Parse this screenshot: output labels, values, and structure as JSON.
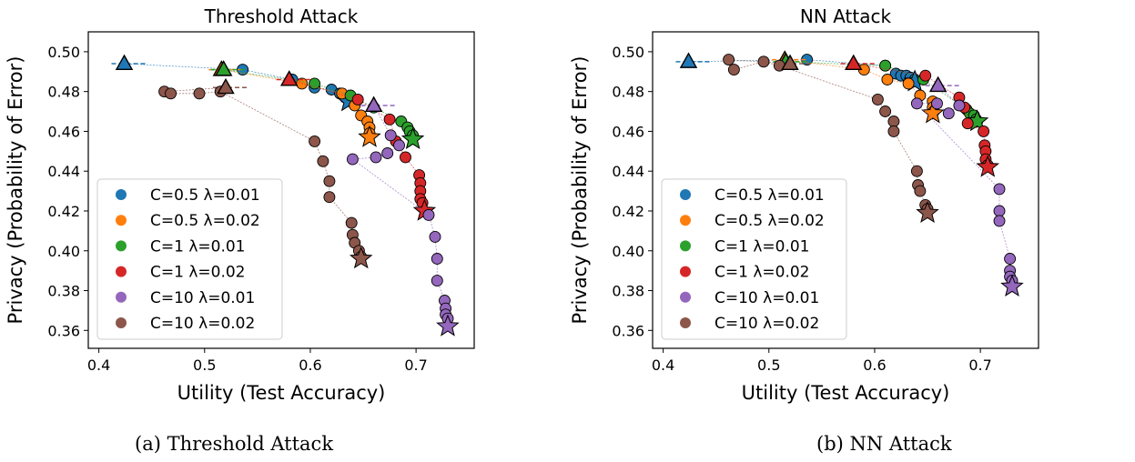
{
  "chart_data": [
    {
      "type": "scatter",
      "title": "Threshold Attack",
      "xlabel": "Utility (Test Accuracy)",
      "ylabel": "Privacy (Probability of Error)",
      "xlim": [
        0.39,
        0.755
      ],
      "ylim": [
        0.351,
        0.51
      ],
      "xticks": [
        0.4,
        0.5,
        0.6,
        0.7
      ],
      "xtick_labels": [
        "0.4",
        "0.5",
        "0.6",
        "0.7"
      ],
      "yticks": [
        0.36,
        0.38,
        0.4,
        0.42,
        0.44,
        0.46,
        0.48,
        0.5
      ],
      "ytick_labels": [
        "0.36",
        "0.38",
        "0.40",
        "0.42",
        "0.44",
        "0.46",
        "0.48",
        "0.50"
      ],
      "legend_position": "lower-left",
      "series": [
        {
          "name": "C=0.5 λ=0.01",
          "color": "#1f77b4",
          "triangle": [
            0.424,
            0.494
          ],
          "star": [
            0.636,
            0.475
          ],
          "points": [
            [
              0.536,
              0.491
            ],
            [
              0.583,
              0.486
            ],
            [
              0.604,
              0.482
            ],
            [
              0.62,
              0.481
            ],
            [
              0.628,
              0.479
            ],
            [
              0.633,
              0.477
            ],
            [
              0.636,
              0.476
            ]
          ]
        },
        {
          "name": "C=0.5 λ=0.02",
          "color": "#ff7f0e",
          "triangle": [
            0.516,
            0.491
          ],
          "star": [
            0.656,
            0.457
          ],
          "points": [
            [
              0.592,
              0.484
            ],
            [
              0.63,
              0.479
            ],
            [
              0.642,
              0.473
            ],
            [
              0.648,
              0.468
            ],
            [
              0.654,
              0.465
            ],
            [
              0.656,
              0.462
            ],
            [
              0.656,
              0.459
            ]
          ]
        },
        {
          "name": "C=1 λ=0.01",
          "color": "#2ca02c",
          "triangle": [
            0.518,
            0.491
          ],
          "star": [
            0.697,
            0.456
          ],
          "points": [
            [
              0.604,
              0.484
            ],
            [
              0.638,
              0.478
            ],
            [
              0.66,
              0.472
            ],
            [
              0.686,
              0.465
            ],
            [
              0.692,
              0.462
            ],
            [
              0.694,
              0.46
            ],
            [
              0.697,
              0.458
            ]
          ]
        },
        {
          "name": "C=1 λ=0.02",
          "color": "#d62728",
          "triangle": [
            0.58,
            0.486
          ],
          "star": [
            0.708,
            0.42
          ],
          "points": [
            [
              0.645,
              0.476
            ],
            [
              0.675,
              0.466
            ],
            [
              0.681,
              0.455
            ],
            [
              0.69,
              0.447
            ],
            [
              0.703,
              0.438
            ],
            [
              0.704,
              0.434
            ],
            [
              0.704,
              0.43
            ],
            [
              0.704,
              0.426
            ],
            [
              0.706,
              0.424
            ]
          ]
        },
        {
          "name": "C=10 λ=0.01",
          "color": "#9467bd",
          "triangle": [
            0.66,
            0.473
          ],
          "star": [
            0.73,
            0.362
          ],
          "points": [
            [
              0.676,
              0.458
            ],
            [
              0.684,
              0.453
            ],
            [
              0.673,
              0.449
            ],
            [
              0.662,
              0.447
            ],
            [
              0.64,
              0.446
            ],
            [
              0.712,
              0.418
            ],
            [
              0.718,
              0.407
            ],
            [
              0.72,
              0.396
            ],
            [
              0.72,
              0.385
            ],
            [
              0.727,
              0.375
            ],
            [
              0.728,
              0.371
            ],
            [
              0.728,
              0.368
            ],
            [
              0.73,
              0.366
            ]
          ]
        },
        {
          "name": "C=10 λ=0.02",
          "color": "#8c564b",
          "triangle": [
            0.52,
            0.482
          ],
          "star": [
            0.648,
            0.396
          ],
          "points": [
            [
              0.462,
              0.48
            ],
            [
              0.468,
              0.479
            ],
            [
              0.495,
              0.479
            ],
            [
              0.515,
              0.48
            ],
            [
              0.604,
              0.455
            ],
            [
              0.612,
              0.445
            ],
            [
              0.618,
              0.435
            ],
            [
              0.618,
              0.427
            ],
            [
              0.639,
              0.414
            ],
            [
              0.64,
              0.408
            ],
            [
              0.642,
              0.404
            ],
            [
              0.646,
              0.4
            ],
            [
              0.648,
              0.397
            ]
          ]
        }
      ]
    },
    {
      "type": "scatter",
      "title": "NN Attack",
      "xlabel": "Utility (Test Accuracy)",
      "ylabel": "Privacy (Probability of Error)",
      "xlim": [
        0.39,
        0.755
      ],
      "ylim": [
        0.351,
        0.51
      ],
      "xticks": [
        0.4,
        0.5,
        0.6,
        0.7
      ],
      "xtick_labels": [
        "0.4",
        "0.5",
        "0.6",
        "0.7"
      ],
      "yticks": [
        0.36,
        0.38,
        0.4,
        0.42,
        0.44,
        0.46,
        0.48,
        0.5
      ],
      "ytick_labels": [
        "0.36",
        "0.38",
        "0.40",
        "0.42",
        "0.44",
        "0.46",
        "0.48",
        "0.50"
      ],
      "legend_position": "lower-left",
      "series": [
        {
          "name": "C=0.5 λ=0.01",
          "color": "#1f77b4",
          "triangle": [
            0.424,
            0.495
          ],
          "star": [
            0.638,
            0.485
          ],
          "points": [
            [
              0.536,
              0.496
            ],
            [
              0.61,
              0.493
            ],
            [
              0.62,
              0.489
            ],
            [
              0.625,
              0.488
            ],
            [
              0.63,
              0.488
            ],
            [
              0.634,
              0.487
            ],
            [
              0.638,
              0.486
            ]
          ]
        },
        {
          "name": "C=0.5 λ=0.02",
          "color": "#ff7f0e",
          "triangle": [
            0.515,
            0.496
          ],
          "star": [
            0.655,
            0.469
          ],
          "points": [
            [
              0.59,
              0.491
            ],
            [
              0.612,
              0.486
            ],
            [
              0.632,
              0.484
            ],
            [
              0.643,
              0.478
            ],
            [
              0.655,
              0.475
            ],
            [
              0.655,
              0.472
            ],
            [
              0.656,
              0.47
            ]
          ]
        },
        {
          "name": "C=1 λ=0.01",
          "color": "#2ca02c",
          "triangle": [
            0.516,
            0.495
          ],
          "star": [
            0.697,
            0.465
          ],
          "points": [
            [
              0.61,
              0.493
            ],
            [
              0.646,
              0.486
            ],
            [
              0.687,
              0.471
            ],
            [
              0.69,
              0.469
            ],
            [
              0.694,
              0.468
            ],
            [
              0.696,
              0.466
            ],
            [
              0.697,
              0.465
            ]
          ]
        },
        {
          "name": "C=1 λ=0.02",
          "color": "#d62728",
          "triangle": [
            0.58,
            0.494
          ],
          "star": [
            0.707,
            0.442
          ],
          "points": [
            [
              0.648,
              0.488
            ],
            [
              0.68,
              0.477
            ],
            [
              0.685,
              0.472
            ],
            [
              0.688,
              0.464
            ],
            [
              0.703,
              0.46
            ],
            [
              0.704,
              0.453
            ],
            [
              0.705,
              0.45
            ],
            [
              0.705,
              0.446
            ],
            [
              0.707,
              0.443
            ]
          ]
        },
        {
          "name": "C=10 λ=0.01",
          "color": "#9467bd",
          "triangle": [
            0.66,
            0.483
          ],
          "star": [
            0.73,
            0.382
          ],
          "points": [
            [
              0.68,
              0.473
            ],
            [
              0.67,
              0.469
            ],
            [
              0.659,
              0.474
            ],
            [
              0.64,
              0.474
            ],
            [
              0.718,
              0.431
            ],
            [
              0.718,
              0.42
            ],
            [
              0.718,
              0.415
            ],
            [
              0.728,
              0.396
            ],
            [
              0.728,
              0.39
            ],
            [
              0.728,
              0.387
            ],
            [
              0.73,
              0.385
            ]
          ]
        },
        {
          "name": "C=10 λ=0.02",
          "color": "#8c564b",
          "triangle": [
            0.52,
            0.494
          ],
          "star": [
            0.65,
            0.419
          ],
          "points": [
            [
              0.462,
              0.496
            ],
            [
              0.467,
              0.491
            ],
            [
              0.495,
              0.495
            ],
            [
              0.51,
              0.493
            ],
            [
              0.603,
              0.476
            ],
            [
              0.61,
              0.47
            ],
            [
              0.618,
              0.465
            ],
            [
              0.618,
              0.46
            ],
            [
              0.64,
              0.44
            ],
            [
              0.641,
              0.433
            ],
            [
              0.643,
              0.43
            ],
            [
              0.648,
              0.423
            ],
            [
              0.65,
              0.421
            ]
          ]
        }
      ]
    }
  ],
  "captions": {
    "a": "(a) Threshold Attack",
    "b": "(b) NN Attack"
  }
}
